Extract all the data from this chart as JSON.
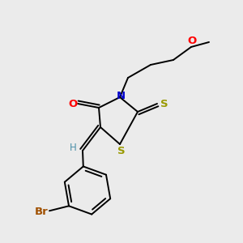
{
  "background_color": "#ebebeb",
  "fig_size": [
    3.0,
    3.0
  ],
  "dpi": 100,
  "label_colors": {
    "O": "#ff0000",
    "N": "#0000cc",
    "S": "#999900",
    "Br": "#a05000",
    "H": "#4a8fa8"
  }
}
